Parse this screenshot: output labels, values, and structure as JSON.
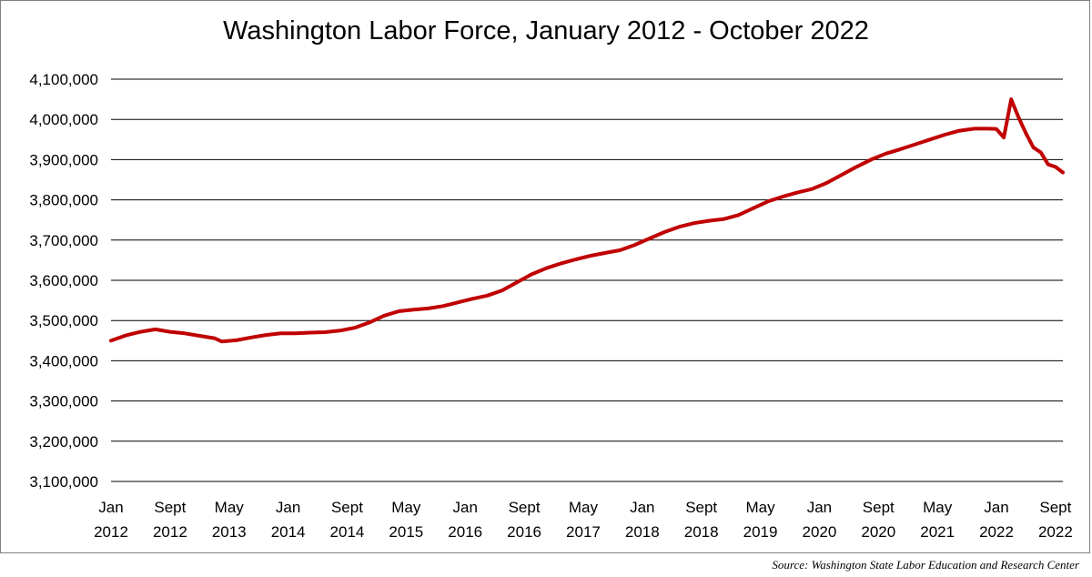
{
  "chart_data": {
    "type": "line",
    "title": "Washington Labor Force, January 2012 - October 2022",
    "xlabel": "",
    "ylabel": "",
    "ylim": [
      3100000,
      4100000
    ],
    "y_ticks": [
      3100000,
      3200000,
      3300000,
      3400000,
      3500000,
      3600000,
      3700000,
      3800000,
      3900000,
      4000000,
      4100000
    ],
    "y_tick_labels": [
      "3,100,000",
      "3,200,000",
      "3,300,000",
      "3,400,000",
      "3,500,000",
      "3,600,000",
      "3,700,000",
      "3,800,000",
      "3,900,000",
      "4,000,000",
      "4,100,000"
    ],
    "x_range": [
      "2012-01",
      "2022-10"
    ],
    "x_ticks": [
      {
        "date": "2012-01",
        "line1": "Jan",
        "line2": "2012"
      },
      {
        "date": "2012-09",
        "line1": "Sept",
        "line2": "2012"
      },
      {
        "date": "2013-05",
        "line1": "May",
        "line2": "2013"
      },
      {
        "date": "2014-01",
        "line1": "Jan",
        "line2": "2014"
      },
      {
        "date": "2014-09",
        "line1": "Sept",
        "line2": "2014"
      },
      {
        "date": "2015-05",
        "line1": "May",
        "line2": "2015"
      },
      {
        "date": "2016-01",
        "line1": "Jan",
        "line2": "2016"
      },
      {
        "date": "2016-09",
        "line1": "Sept",
        "line2": "2016"
      },
      {
        "date": "2017-05",
        "line1": "May",
        "line2": "2017"
      },
      {
        "date": "2018-01",
        "line1": "Jan",
        "line2": "2018"
      },
      {
        "date": "2018-09",
        "line1": "Sept",
        "line2": "2018"
      },
      {
        "date": "2019-05",
        "line1": "May",
        "line2": "2019"
      },
      {
        "date": "2020-01",
        "line1": "Jan",
        "line2": "2020"
      },
      {
        "date": "2020-09",
        "line1": "Sept",
        "line2": "2020"
      },
      {
        "date": "2021-05",
        "line1": "May",
        "line2": "2021"
      },
      {
        "date": "2022-01",
        "line1": "Jan",
        "line2": "2022"
      },
      {
        "date": "2022-09",
        "line1": "Sept",
        "line2": "2022"
      }
    ],
    "grid": "horizontal",
    "legend": "none",
    "series": [
      {
        "color": "#c00000",
        "points": [
          [
            "2012-01",
            3450000
          ],
          [
            "2012-03",
            3463000
          ],
          [
            "2012-05",
            3472000
          ],
          [
            "2012-07",
            3478000
          ],
          [
            "2012-09",
            3472000
          ],
          [
            "2012-11",
            3468000
          ],
          [
            "2013-01",
            3462000
          ],
          [
            "2013-03",
            3456000
          ],
          [
            "2013-04",
            3448000
          ],
          [
            "2013-06",
            3451000
          ],
          [
            "2013-08",
            3458000
          ],
          [
            "2013-10",
            3464000
          ],
          [
            "2013-12",
            3468000
          ],
          [
            "2014-02",
            3468000
          ],
          [
            "2014-04",
            3470000
          ],
          [
            "2014-06",
            3471000
          ],
          [
            "2014-08",
            3475000
          ],
          [
            "2014-10",
            3482000
          ],
          [
            "2014-12",
            3495000
          ],
          [
            "2015-02",
            3512000
          ],
          [
            "2015-04",
            3523000
          ],
          [
            "2015-06",
            3527000
          ],
          [
            "2015-08",
            3530000
          ],
          [
            "2015-10",
            3536000
          ],
          [
            "2015-12",
            3545000
          ],
          [
            "2016-02",
            3554000
          ],
          [
            "2016-04",
            3562000
          ],
          [
            "2016-06",
            3575000
          ],
          [
            "2016-08",
            3595000
          ],
          [
            "2016-10",
            3615000
          ],
          [
            "2016-12",
            3630000
          ],
          [
            "2017-02",
            3642000
          ],
          [
            "2017-04",
            3652000
          ],
          [
            "2017-06",
            3661000
          ],
          [
            "2017-08",
            3668000
          ],
          [
            "2017-10",
            3675000
          ],
          [
            "2017-12",
            3688000
          ],
          [
            "2018-02",
            3704000
          ],
          [
            "2018-04",
            3720000
          ],
          [
            "2018-06",
            3733000
          ],
          [
            "2018-08",
            3742000
          ],
          [
            "2018-10",
            3748000
          ],
          [
            "2018-12",
            3752000
          ],
          [
            "2019-02",
            3762000
          ],
          [
            "2019-04",
            3779000
          ],
          [
            "2019-06",
            3796000
          ],
          [
            "2019-08",
            3808000
          ],
          [
            "2019-10",
            3818000
          ],
          [
            "2019-12",
            3827000
          ],
          [
            "2020-02",
            3842000
          ],
          [
            "2020-04",
            3862000
          ],
          [
            "2020-06",
            3882000
          ],
          [
            "2020-08",
            3900000
          ],
          [
            "2020-10",
            3915000
          ],
          [
            "2020-12",
            3926000
          ],
          [
            "2021-02",
            3938000
          ],
          [
            "2021-04",
            3950000
          ],
          [
            "2021-06",
            3962000
          ],
          [
            "2021-08",
            3972000
          ],
          [
            "2021-10",
            3977000
          ],
          [
            "2021-12",
            3977000
          ],
          [
            "2022-01",
            3976000
          ],
          [
            "2022-02",
            3955000
          ],
          [
            "2022-03",
            4050000
          ],
          [
            "2022-04",
            4005000
          ],
          [
            "2022-05",
            3965000
          ],
          [
            "2022-06",
            3930000
          ],
          [
            "2022-07",
            3918000
          ],
          [
            "2022-08",
            3888000
          ],
          [
            "2022-09",
            3882000
          ],
          [
            "2022-10",
            3868000
          ]
        ]
      }
    ]
  },
  "source": "Source: Washington State Labor Education and Research Center"
}
